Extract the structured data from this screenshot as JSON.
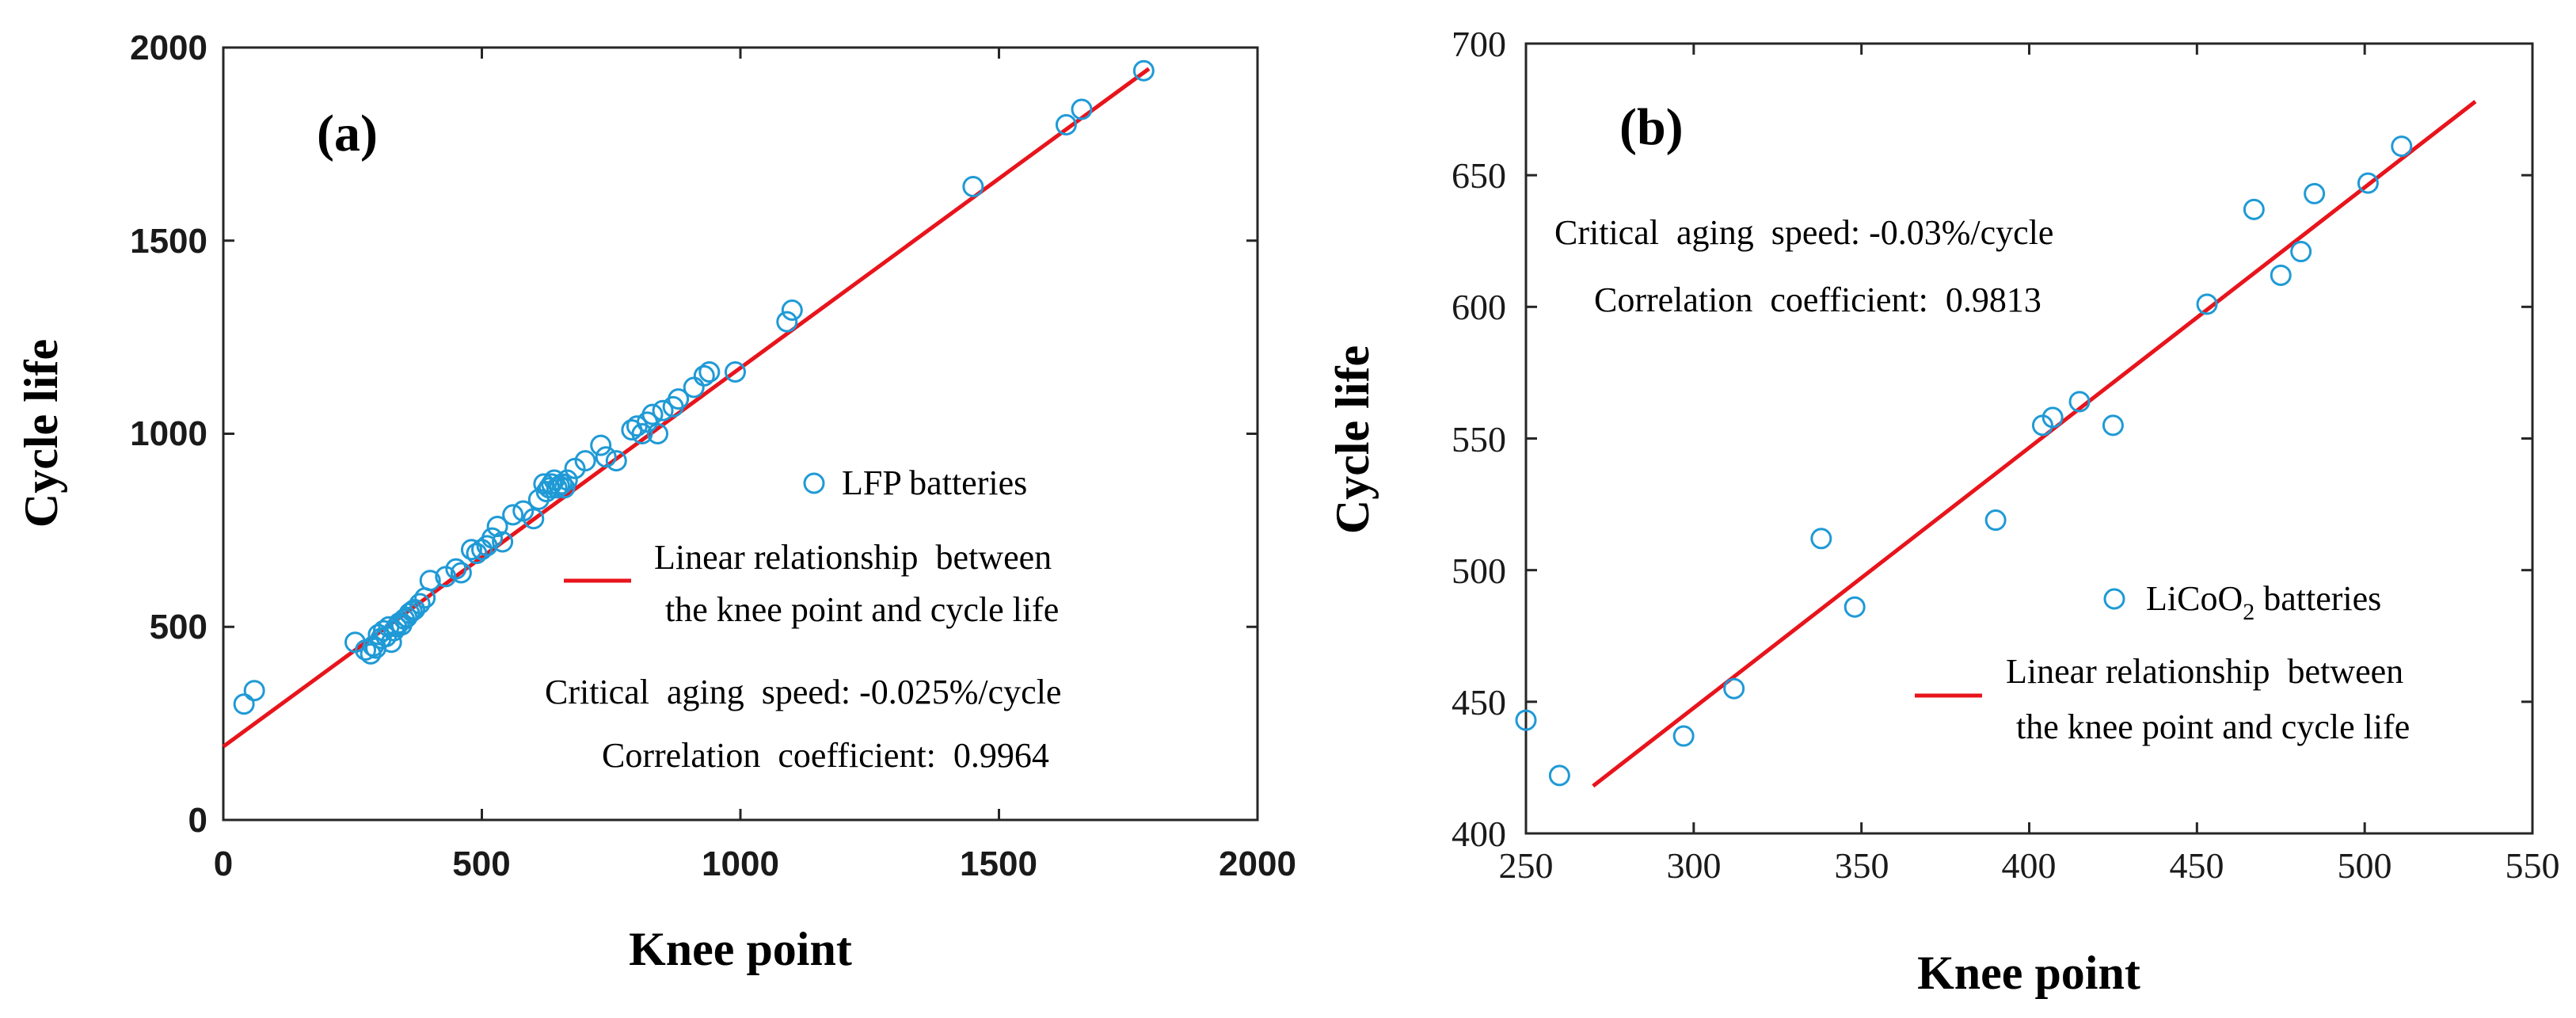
{
  "chart_data": [
    {
      "type": "scatter",
      "panel_label": "(a)",
      "xlabel": "Knee point",
      "ylabel": "Cycle life",
      "xlim": [
        0,
        2000
      ],
      "ylim": [
        0,
        2000
      ],
      "xticks": [
        "0",
        "500",
        "1000",
        "1500",
        "2000"
      ],
      "yticks": [
        "0",
        "500",
        "1000",
        "1500",
        "2000"
      ],
      "legend": {
        "marker_label": "LFP batteries",
        "line_label": [
          "Linear relationship  between",
          "the knee point and cycle life"
        ]
      },
      "annotations": [
        "Critical  aging  speed: -0.025%/cycle",
        "Correlation  coefficient:  0.9964"
      ],
      "fit_line": {
        "x": [
          0,
          1790
        ],
        "y": [
          190,
          1945
        ]
      },
      "series": [
        {
          "name": "LFP batteries",
          "x": [
            40,
            60,
            255,
            275,
            285,
            290,
            295,
            300,
            305,
            310,
            315,
            320,
            325,
            330,
            335,
            340,
            345,
            350,
            355,
            360,
            365,
            370,
            380,
            390,
            400,
            430,
            450,
            460,
            480,
            490,
            500,
            510,
            520,
            530,
            540,
            560,
            580,
            600,
            610,
            620,
            625,
            630,
            635,
            640,
            645,
            650,
            655,
            660,
            665,
            680,
            700,
            730,
            740,
            760,
            790,
            800,
            810,
            820,
            830,
            840,
            850,
            870,
            880,
            910,
            930,
            940,
            990,
            1090,
            1100,
            1450,
            1630,
            1660,
            1780
          ],
          "y": [
            300,
            335,
            460,
            440,
            430,
            450,
            445,
            480,
            470,
            490,
            475,
            500,
            460,
            490,
            500,
            510,
            505,
            520,
            525,
            535,
            540,
            545,
            560,
            575,
            620,
            630,
            650,
            640,
            700,
            690,
            700,
            710,
            730,
            760,
            720,
            790,
            800,
            780,
            830,
            870,
            850,
            860,
            870,
            880,
            860,
            865,
            870,
            860,
            880,
            910,
            930,
            970,
            940,
            930,
            1010,
            1020,
            1000,
            1030,
            1050,
            1000,
            1060,
            1070,
            1090,
            1120,
            1150,
            1160,
            1160,
            1290,
            1320,
            1640,
            1800,
            1840,
            1940
          ]
        }
      ]
    },
    {
      "type": "scatter",
      "panel_label": "(b)",
      "xlabel": "Knee point",
      "ylabel": "Cycle life",
      "xlim": [
        250,
        550
      ],
      "ylim": [
        400,
        700
      ],
      "xticks": [
        "250",
        "300",
        "350",
        "400",
        "450",
        "500",
        "550"
      ],
      "yticks": [
        "400",
        "450",
        "500",
        "550",
        "600",
        "650",
        "700"
      ],
      "legend": {
        "marker_label_main": "LiCoO",
        "marker_label_sub": "2",
        "marker_label_tail": " batteries",
        "line_label": [
          "Linear relationship  between",
          "the knee point and cycle life"
        ]
      },
      "annotations": [
        "Critical  aging  speed: -0.03%/cycle",
        "Correlation  coefficient:  0.9813"
      ],
      "fit_line": {
        "x": [
          270,
          533
        ],
        "y": [
          418,
          678
        ]
      },
      "series": [
        {
          "name": "LiCoO2 batteries",
          "x": [
            250,
            260,
            297,
            312,
            338,
            348,
            390,
            404,
            407,
            415,
            425,
            453,
            467,
            475,
            481,
            485,
            501,
            511
          ],
          "y": [
            443,
            422,
            437,
            455,
            512,
            486,
            519,
            555,
            558,
            564,
            555,
            601,
            637,
            612,
            621,
            643,
            647,
            661
          ]
        }
      ]
    }
  ]
}
